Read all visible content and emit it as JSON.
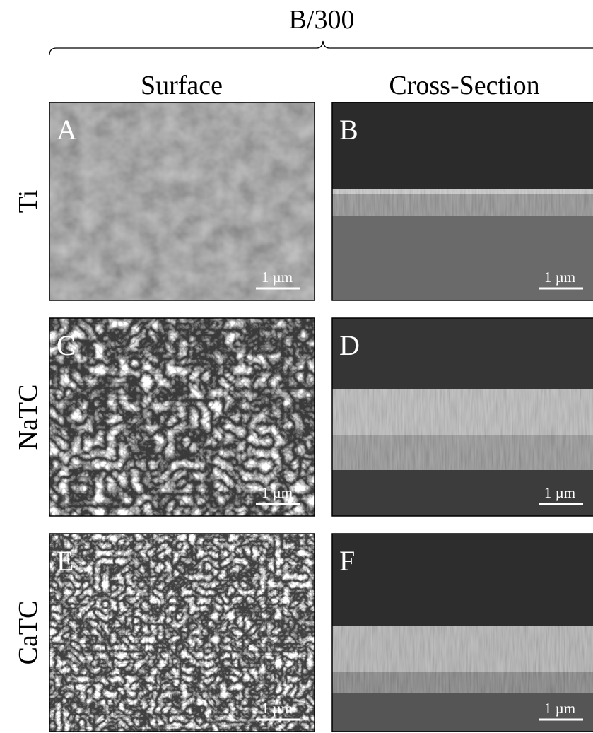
{
  "header": {
    "title": "B/300"
  },
  "columns": [
    "Surface",
    "Cross-Section"
  ],
  "rows": [
    {
      "label": "Ti",
      "panels": [
        {
          "letter": "A",
          "scale": "1 µm"
        },
        {
          "letter": "B",
          "scale": "1 µm"
        }
      ]
    },
    {
      "label": "NaTC",
      "panels": [
        {
          "letter": "C",
          "scale": "1 µm"
        },
        {
          "letter": "D",
          "scale": "1 µm"
        }
      ]
    },
    {
      "label": "CaTC",
      "panels": [
        {
          "letter": "E",
          "scale": "1 µm"
        },
        {
          "letter": "F",
          "scale": "1 µm"
        }
      ]
    }
  ]
}
